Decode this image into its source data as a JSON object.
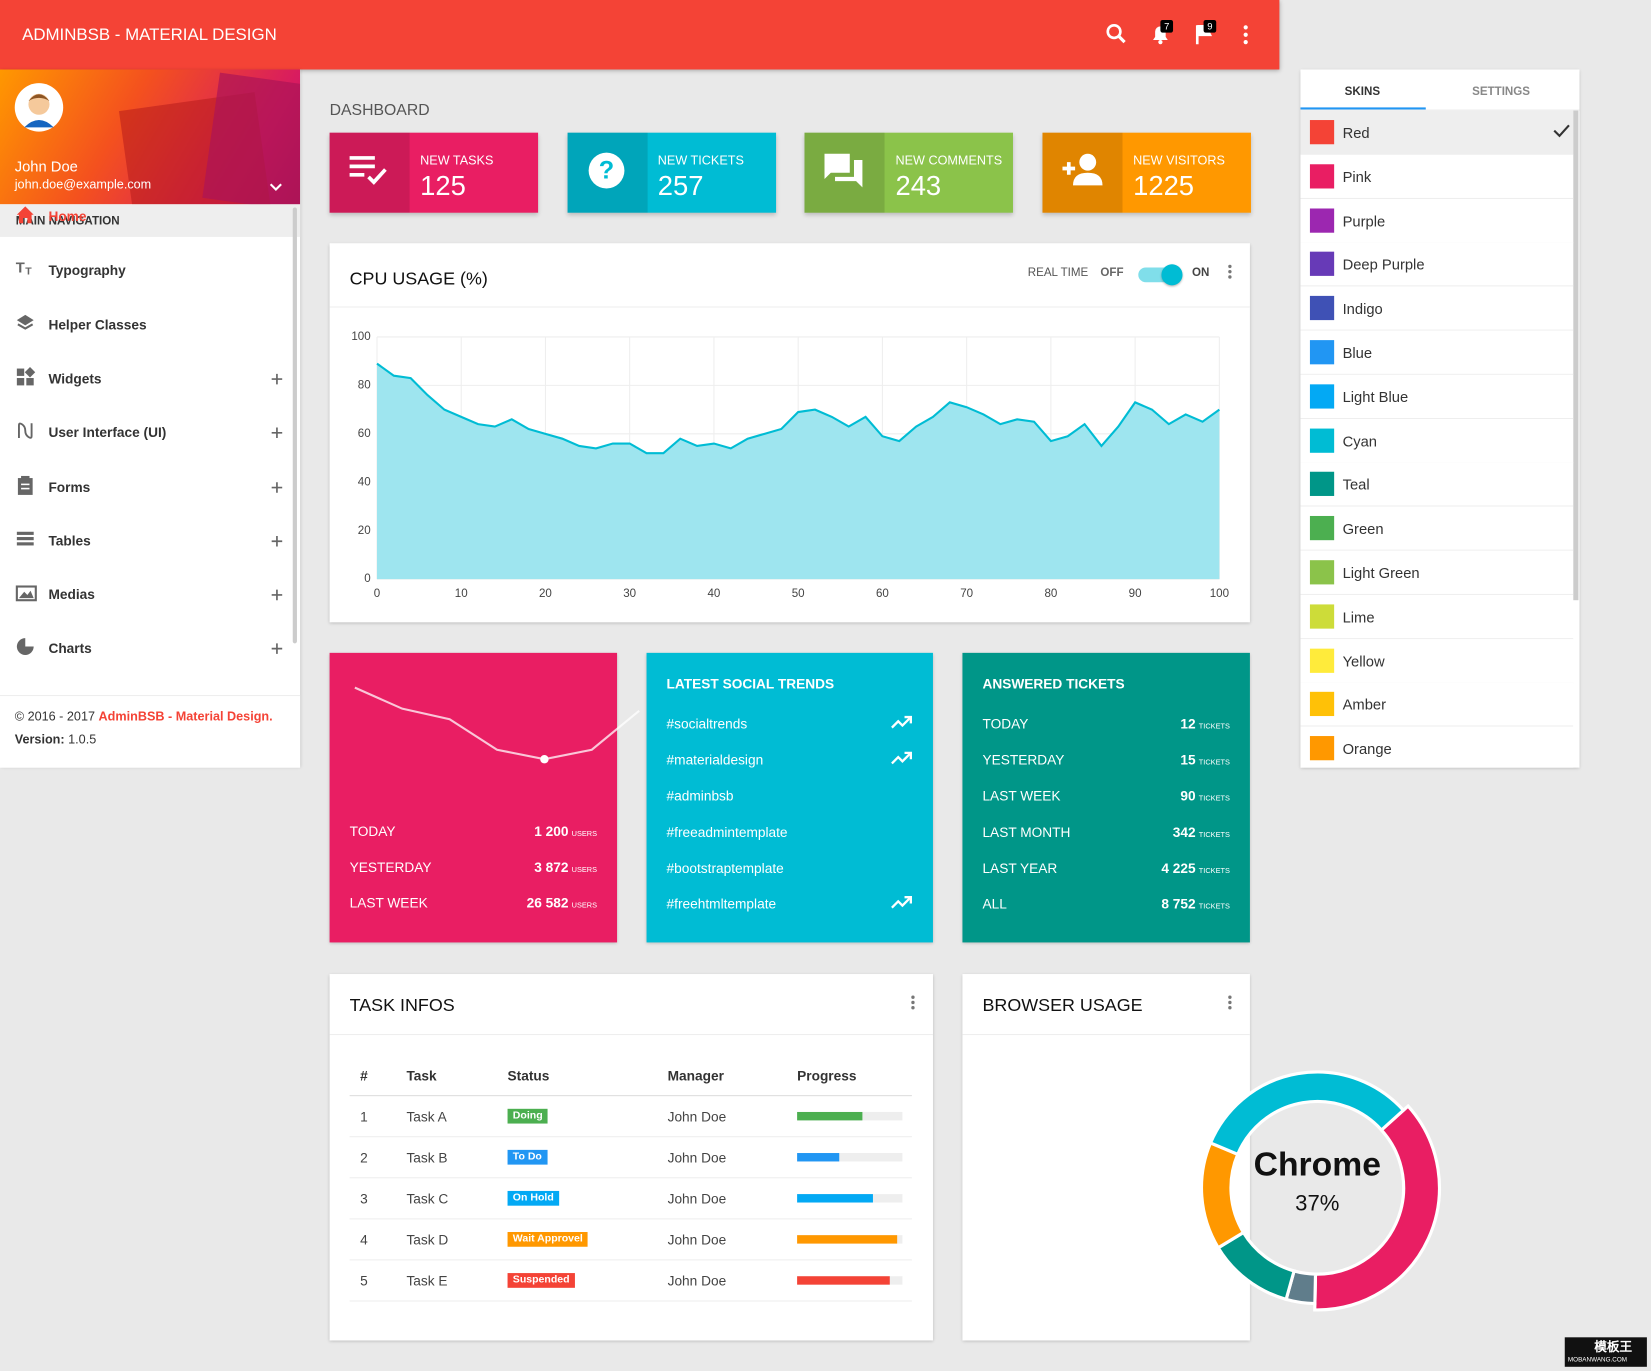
{
  "header": {
    "title": "ADMINBSB - MATERIAL DESIGN",
    "notifications": "7",
    "flags": "9"
  },
  "user": {
    "name": "John Doe",
    "email": "john.doe@example.com"
  },
  "sidebar": {
    "section": "MAIN NAVIGATION",
    "items": [
      {
        "label": "Home",
        "expandable": false,
        "active": true
      },
      {
        "label": "Typography",
        "expandable": false,
        "active": false
      },
      {
        "label": "Helper Classes",
        "expandable": false,
        "active": false
      },
      {
        "label": "Widgets",
        "expandable": true,
        "active": false
      },
      {
        "label": "User Interface (UI)",
        "expandable": true,
        "active": false
      },
      {
        "label": "Forms",
        "expandable": true,
        "active": false
      },
      {
        "label": "Tables",
        "expandable": true,
        "active": false
      },
      {
        "label": "Medias",
        "expandable": true,
        "active": false
      },
      {
        "label": "Charts",
        "expandable": true,
        "active": false
      }
    ],
    "footer": {
      "copyright": "© 2016 - 2017",
      "brand": "AdminBSB - Material Design.",
      "version_label": "Version:",
      "version": "1.0.5"
    }
  },
  "page_title": "DASHBOARD",
  "info_boxes": [
    {
      "label": "NEW TASKS",
      "value": "125",
      "color": "#e91e63"
    },
    {
      "label": "NEW TICKETS",
      "value": "257",
      "color": "#00bcd4"
    },
    {
      "label": "NEW COMMENTS",
      "value": "243",
      "color": "#8bc34a"
    },
    {
      "label": "NEW VISITORS",
      "value": "1225",
      "color": "#ff9800"
    }
  ],
  "cpu_chart": {
    "type": "area",
    "title": "CPU USAGE (%)",
    "realtime": "REAL TIME",
    "off": "OFF",
    "on": "ON",
    "x": [
      0,
      2,
      4,
      6,
      8,
      10,
      12,
      14,
      16,
      18,
      20,
      22,
      24,
      26,
      28,
      30,
      32,
      34,
      36,
      38,
      40,
      42,
      44,
      46,
      48,
      50,
      52,
      54,
      56,
      58,
      60,
      62,
      64,
      66,
      68,
      70,
      72,
      74,
      76,
      78,
      80,
      82,
      84,
      86,
      88,
      90,
      92,
      94,
      96,
      98,
      100
    ],
    "values": [
      89,
      84,
      83,
      76,
      70,
      67,
      64,
      63,
      66,
      62,
      60,
      58,
      55,
      54,
      56,
      56,
      52,
      52,
      58,
      55,
      56,
      54,
      58,
      60,
      62,
      69,
      70,
      67,
      63,
      67,
      59,
      57,
      63,
      67,
      73,
      71,
      68,
      64,
      66,
      65,
      57,
      59,
      64,
      55,
      63,
      73,
      70,
      64,
      68,
      65,
      70
    ],
    "xlim": [
      0,
      100
    ],
    "ylim": [
      0,
      100
    ],
    "xticks": [
      0,
      10,
      20,
      30,
      40,
      50,
      60,
      70,
      80,
      90,
      100
    ],
    "yticks": [
      0,
      20,
      40,
      60,
      80,
      100
    ],
    "color": "#00bcd4",
    "fill": "#9ee5ef",
    "grid": true
  },
  "user_stats": {
    "sparkline": [
      77,
      57,
      47,
      18,
      9,
      18,
      55
    ],
    "unit": "USERS",
    "rows": [
      {
        "label": "TODAY",
        "value": "1 200"
      },
      {
        "label": "YESTERDAY",
        "value": "3 872"
      },
      {
        "label": "LAST WEEK",
        "value": "26 582"
      }
    ]
  },
  "social_trends": {
    "title": "LATEST SOCIAL TRENDS",
    "items": [
      {
        "tag": "#socialtrends",
        "trending": true
      },
      {
        "tag": "#materialdesign",
        "trending": true
      },
      {
        "tag": "#adminbsb",
        "trending": false
      },
      {
        "tag": "#freeadmintemplate",
        "trending": false
      },
      {
        "tag": "#bootstraptemplate",
        "trending": false
      },
      {
        "tag": "#freehtmltemplate",
        "trending": true
      }
    ]
  },
  "answered_tickets": {
    "title": "ANSWERED TICKETS",
    "unit": "TICKETS",
    "rows": [
      {
        "label": "TODAY",
        "value": "12"
      },
      {
        "label": "YESTERDAY",
        "value": "15"
      },
      {
        "label": "LAST WEEK",
        "value": "90"
      },
      {
        "label": "LAST MONTH",
        "value": "342"
      },
      {
        "label": "LAST YEAR",
        "value": "4 225"
      },
      {
        "label": "ALL",
        "value": "8 752"
      }
    ]
  },
  "task_infos": {
    "title": "TASK INFOS",
    "columns": [
      "#",
      "Task",
      "Status",
      "Manager",
      "Progress"
    ],
    "rows": [
      {
        "id": "1",
        "task": "Task A",
        "status": "Doing",
        "status_color": "#4caf50",
        "manager": "John Doe",
        "progress": 62,
        "progress_color": "#4caf50"
      },
      {
        "id": "2",
        "task": "Task B",
        "status": "To Do",
        "status_color": "#2196f3",
        "manager": "John Doe",
        "progress": 40,
        "progress_color": "#2196f3"
      },
      {
        "id": "3",
        "task": "Task C",
        "status": "On Hold",
        "status_color": "#03a9f4",
        "manager": "John Doe",
        "progress": 72,
        "progress_color": "#03a9f4"
      },
      {
        "id": "4",
        "task": "Task D",
        "status": "Wait Approvel",
        "status_color": "#ff9800",
        "manager": "John Doe",
        "progress": 95,
        "progress_color": "#ff9800"
      },
      {
        "id": "5",
        "task": "Task E",
        "status": "Suspended",
        "status_color": "#f44336",
        "manager": "John Doe",
        "progress": 88,
        "progress_color": "#f44336"
      }
    ]
  },
  "browser_usage": {
    "title": "BROWSER USAGE",
    "chart": {
      "type": "donut",
      "segments": [
        {
          "name": "Chrome",
          "value": 37,
          "value_label": "37%",
          "color": "#e91e63"
        },
        {
          "value": 4,
          "color": "#607d8b"
        },
        {
          "value": 12,
          "color": "#009688"
        },
        {
          "value": 15,
          "color": "#ff9800"
        },
        {
          "value": 32,
          "color": "#00bcd4"
        }
      ]
    }
  },
  "skins": {
    "tabs": [
      "SKINS",
      "SETTINGS"
    ],
    "selected": 0,
    "items": [
      {
        "name": "Red",
        "color": "#f44336"
      },
      {
        "name": "Pink",
        "color": "#e91e63"
      },
      {
        "name": "Purple",
        "color": "#9c27b0"
      },
      {
        "name": "Deep Purple",
        "color": "#673ab7"
      },
      {
        "name": "Indigo",
        "color": "#3f51b5"
      },
      {
        "name": "Blue",
        "color": "#2196f3"
      },
      {
        "name": "Light Blue",
        "color": "#03a9f4"
      },
      {
        "name": "Cyan",
        "color": "#00bcd4"
      },
      {
        "name": "Teal",
        "color": "#009688"
      },
      {
        "name": "Green",
        "color": "#4caf50"
      },
      {
        "name": "Light Green",
        "color": "#8bc34a"
      },
      {
        "name": "Lime",
        "color": "#cddc39"
      },
      {
        "name": "Yellow",
        "color": "#ffeb3b"
      },
      {
        "name": "Amber",
        "color": "#ffc107"
      },
      {
        "name": "Orange",
        "color": "#ff9800"
      }
    ]
  },
  "watermark": {
    "name": "模板王",
    "url": "MOBANWANG.COM"
  }
}
